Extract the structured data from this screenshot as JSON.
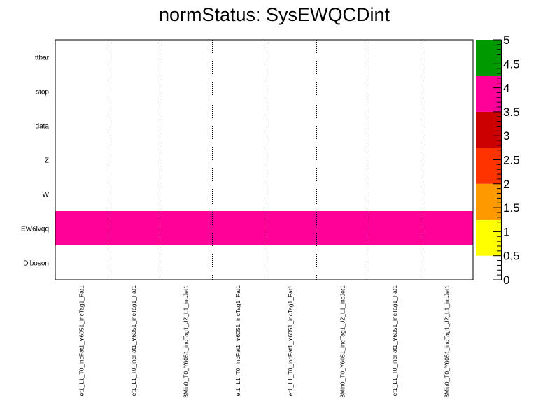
{
  "chart_data": {
    "type": "heatmap",
    "title": "normStatus: SysEWQCDint",
    "y_categories": [
      "Diboson",
      "EW6lvqq",
      "W",
      "Z",
      "data",
      "stop",
      "ttbar"
    ],
    "x_categories": [
      "et1_L1_T0_incFat1_Y6051_incTag1_Fat1",
      "et1_L1_T0_incFat1_Y6051_incTag1_Fat1",
      "3Min0_T0_Y6051_incTag1_J2_L1_incJet1",
      "et1_L1_T0_incFat1_Y6051_incTag1_Fat1",
      "et1_L1_T0_incFat1_Y6051_incTag1_Fat1",
      "3Min0_T0_Y6051_incTag1_J2_L1_incJet1",
      "et1_L1_T0_incFat1_Y6051_incTag1_Fat1",
      "3Min0_T0_Y6051_incTag1_J2_L1_incJet1"
    ],
    "values": [
      [
        0,
        0,
        0,
        0,
        0,
        0,
        0,
        0
      ],
      [
        5,
        5,
        5,
        5,
        5,
        5,
        5,
        5
      ],
      [
        0,
        0,
        0,
        0,
        0,
        0,
        0,
        0
      ],
      [
        0,
        0,
        0,
        0,
        0,
        0,
        0,
        0
      ],
      [
        0,
        0,
        0,
        0,
        0,
        0,
        0,
        0
      ],
      [
        0,
        0,
        0,
        0,
        0,
        0,
        0,
        0
      ],
      [
        0,
        0,
        0,
        0,
        0,
        0,
        0,
        0
      ]
    ],
    "zlim": [
      0,
      5
    ],
    "z_ticks": [
      "0",
      "0.5",
      "1",
      "1.5",
      "2",
      "2.5",
      "3",
      "3.5",
      "4",
      "4.5",
      "5"
    ],
    "palette": [
      {
        "from": 0.5,
        "to": 1.5,
        "color": "#ffff00"
      },
      {
        "from": 1.5,
        "to": 2.5,
        "color": "#ff9900"
      },
      {
        "from": 2.5,
        "to": 3.5,
        "color": "#ff3300"
      },
      {
        "from": 3.5,
        "to": 4.5,
        "color": "#cc0000"
      },
      {
        "from": 4.5,
        "to": 5.5,
        "color": "#ff0099"
      },
      {
        "from": 5.5,
        "to": 6.5,
        "color": "#009900"
      }
    ],
    "palette_display": [
      "#ffff00",
      "#ff9900",
      "#ff3300",
      "#cc0000",
      "#ff0099",
      "#009900"
    ],
    "grid": "vertical dotted"
  }
}
